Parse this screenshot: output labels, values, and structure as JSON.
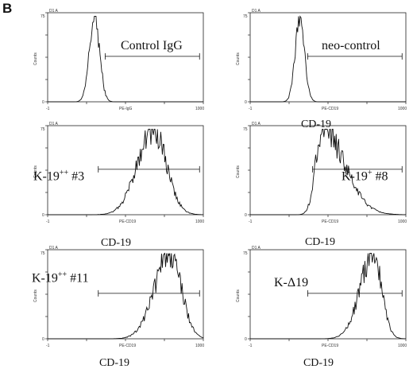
{
  "figure_label": "B",
  "panel_meta": {
    "corner": "D1 A",
    "ylabel": "Counts",
    "xmin_label": "-1",
    "xmax_label": "1000"
  },
  "chart_data": [
    {
      "type": "area",
      "id": "control-igg",
      "label": "Control IgG",
      "caption": "",
      "xlabel_small": "PE-IgG",
      "x_scale": "log",
      "xlim": [
        0.1,
        1000
      ],
      "gate": [
        3,
        800
      ],
      "peak_x": 1.6,
      "log_width": 0.13,
      "skew": 0,
      "ymax": 75,
      "ytick_labels": [
        "0",
        "75"
      ]
    },
    {
      "type": "area",
      "id": "neo-control",
      "label": "neo-control",
      "caption": "CD-19",
      "xlabel_small": "PE-CD19",
      "x_scale": "log",
      "xlim": [
        0.1,
        1000
      ],
      "gate": [
        3,
        800
      ],
      "peak_x": 1.9,
      "log_width": 0.12,
      "skew": 0,
      "ymax": 75,
      "ytick_labels": [
        "0",
        "75"
      ]
    },
    {
      "type": "area",
      "id": "k19-3",
      "label": "K-19",
      "label_sup": "++",
      "label_tail": " #3",
      "caption": "CD-19",
      "xlabel_small": "PE-CD19",
      "x_scale": "log",
      "xlim": [
        0.1,
        1000
      ],
      "gate": [
        2,
        800
      ],
      "peak_x": 50,
      "log_width": 0.38,
      "skew": -0.1,
      "ymax": 75,
      "ytick_labels": [
        "0",
        "75"
      ]
    },
    {
      "type": "area",
      "id": "k19-8",
      "label": "K-19",
      "label_sup": "+",
      "label_tail": " #8",
      "caption": "CD-19",
      "xlabel_small": "PE-CD19",
      "x_scale": "log",
      "xlim": [
        0.1,
        1000
      ],
      "gate": [
        4,
        800
      ],
      "peak_x": 7,
      "log_width": 0.3,
      "skew": 0.9,
      "ymax": 75,
      "ytick_labels": [
        "0",
        "75"
      ]
    },
    {
      "type": "area",
      "id": "k19-11",
      "label": "K-19",
      "label_sup": "++",
      "label_tail": " #11",
      "caption": "CD-19",
      "xlabel_small": "PE-CD19",
      "x_scale": "log",
      "xlim": [
        0.1,
        1000
      ],
      "gate": [
        2,
        800
      ],
      "peak_x": 140,
      "log_width": 0.36,
      "skew": -0.2,
      "ymax": 75,
      "ytick_labels": [
        "0",
        "75"
      ]
    },
    {
      "type": "area",
      "id": "k-delta19",
      "label": "K-Δ19",
      "label_sup": "",
      "label_tail": "",
      "caption": "CD-19",
      "xlabel_small": "PE-CD19",
      "x_scale": "log",
      "xlim": [
        0.1,
        1000
      ],
      "gate": [
        3,
        800
      ],
      "peak_x": 150,
      "log_width": 0.3,
      "skew": -0.3,
      "ymax": 75,
      "ytick_labels": [
        "0",
        "75"
      ]
    }
  ]
}
